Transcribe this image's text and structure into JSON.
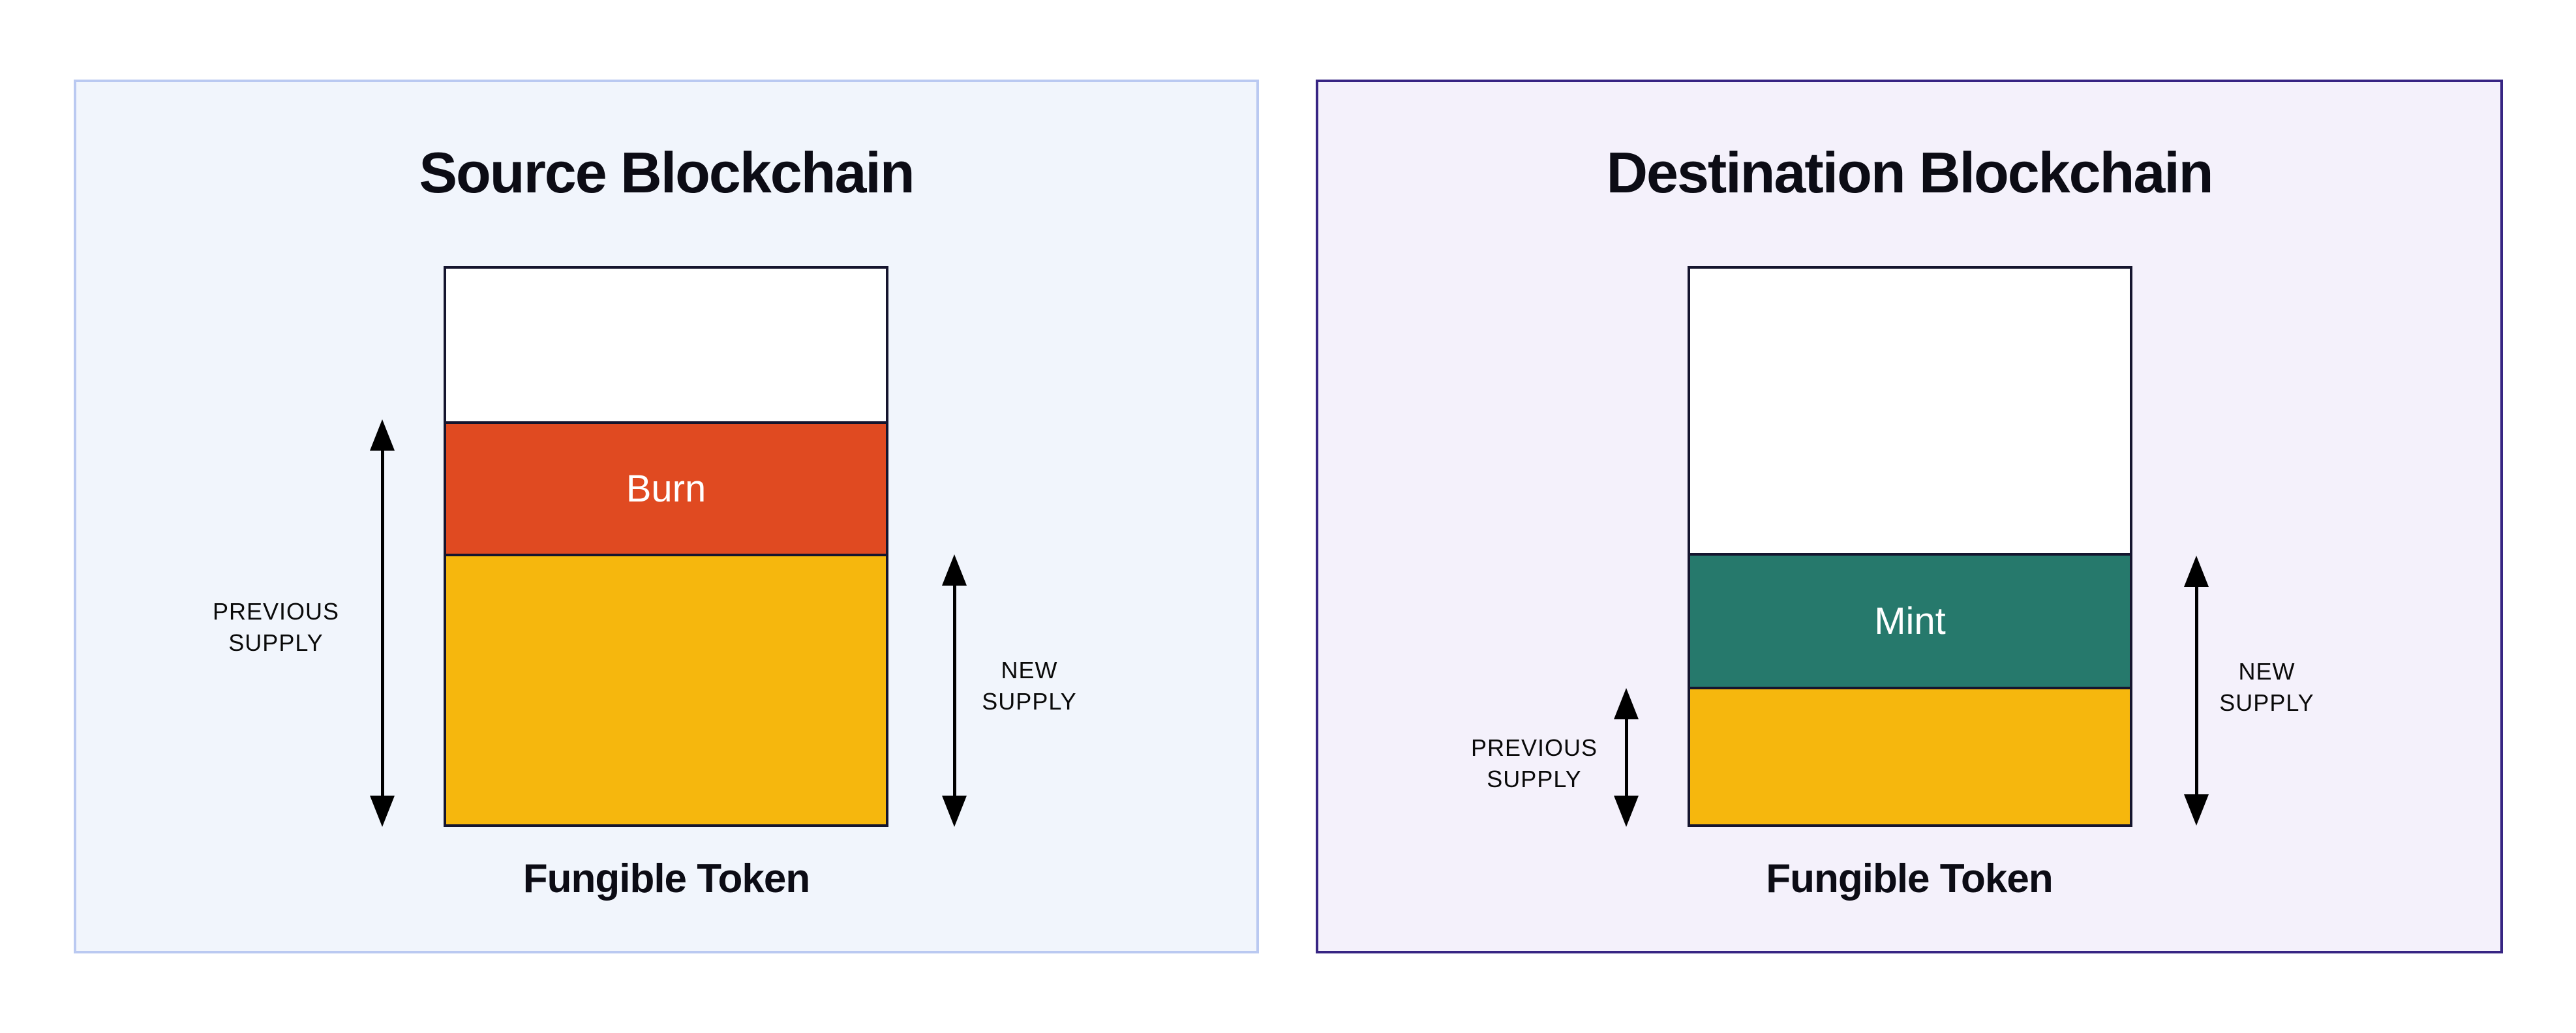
{
  "page": {
    "background": "#ffffff"
  },
  "colors": {
    "outline": "#15152e",
    "arrow": "#000000",
    "empty_white": "#ffffff",
    "burn_orange": "#e04a21",
    "mint_teal": "#26796c",
    "supply_yellow": "#f6b70d",
    "source_panel_bg": "#f1f5fc",
    "source_panel_border": "#bac9f1",
    "destination_panel_bg": "#f4f1fb",
    "destination_panel_border": "#372583",
    "title_text": "#0c0c15",
    "label_text": "#0a0a0a",
    "segment_label_text": "#ffffff"
  },
  "panels": [
    {
      "title": "Source Blockchain",
      "caption": "Fungible Token",
      "previous_supply_label": "PREVIOUS\nSUPPLY",
      "new_supply_label": "NEW\nSUPPLY",
      "bar": {
        "segments": [
          {
            "name": "removed-supply",
            "label": "",
            "height_pct": 27.5,
            "color": "#ffffff"
          },
          {
            "name": "burn",
            "label": "Burn",
            "height_pct": 23.8,
            "color": "#e04a21"
          },
          {
            "name": "remaining-supply",
            "label": "",
            "height_pct": 48.7,
            "color": "#f6b70d"
          }
        ]
      }
    },
    {
      "title": "Destination Blockchain",
      "caption": "Fungible Token",
      "previous_supply_label": "PREVIOUS\nSUPPLY",
      "new_supply_label": "NEW\nSUPPLY",
      "bar": {
        "segments": [
          {
            "name": "unminted-supply",
            "label": "",
            "height_pct": 51.2,
            "color": "#ffffff"
          },
          {
            "name": "mint",
            "label": "Mint",
            "height_pct": 24.0,
            "color": "#26796c"
          },
          {
            "name": "previous-supply",
            "label": "",
            "height_pct": 24.8,
            "color": "#f6b70d"
          }
        ]
      }
    }
  ]
}
